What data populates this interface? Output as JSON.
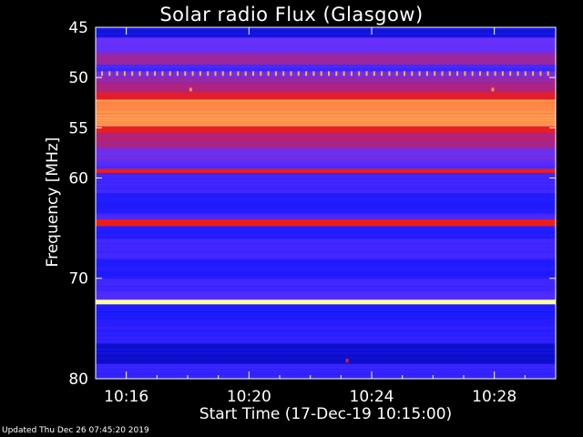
{
  "chart_data": {
    "type": "heatmap",
    "title": "Solar radio Flux (Glasgow)",
    "xlabel": "Start Time (17-Dec-19 10:15:00)",
    "ylabel": "Frequency [MHz]",
    "x_ticks": [
      "10:16",
      "10:20",
      "10:24",
      "10:28"
    ],
    "x_tick_minutes": [
      16,
      20,
      24,
      28
    ],
    "xlim_minutes": [
      15,
      30
    ],
    "y_ticks": [
      45,
      50,
      55,
      60,
      70,
      80
    ],
    "ylim": [
      45,
      80
    ],
    "colorscale": [
      "#00008c",
      "#1a1aff",
      "#6432ff",
      "#c81e50",
      "#ff1e00",
      "#ffff96"
    ],
    "bands": [
      {
        "freq_start": 45.0,
        "freq_end": 46.0,
        "intensity": 0.15
      },
      {
        "freq_start": 46.0,
        "freq_end": 47.5,
        "intensity": 0.4
      },
      {
        "freq_start": 47.5,
        "freq_end": 48.7,
        "intensity": 0.5
      },
      {
        "freq_start": 48.7,
        "freq_end": 49.4,
        "intensity": 0.3
      },
      {
        "freq_start": 49.4,
        "freq_end": 49.9,
        "intensity": 0.45
      },
      {
        "freq_start": 49.9,
        "freq_end": 50.6,
        "intensity": 0.5
      },
      {
        "freq_start": 50.6,
        "freq_end": 51.4,
        "intensity": 0.55
      },
      {
        "freq_start": 51.4,
        "freq_end": 52.2,
        "intensity": 0.7
      },
      {
        "freq_start": 52.2,
        "freq_end": 54.8,
        "intensity": 0.9
      },
      {
        "freq_start": 54.8,
        "freq_end": 55.5,
        "intensity": 0.72
      },
      {
        "freq_start": 55.5,
        "freq_end": 57.0,
        "intensity": 0.55
      },
      {
        "freq_start": 57.0,
        "freq_end": 58.2,
        "intensity": 0.42
      },
      {
        "freq_start": 58.2,
        "freq_end": 59.1,
        "intensity": 0.35
      },
      {
        "freq_start": 59.1,
        "freq_end": 59.5,
        "intensity": 0.74
      },
      {
        "freq_start": 59.5,
        "freq_end": 61.5,
        "intensity": 0.3
      },
      {
        "freq_start": 61.5,
        "freq_end": 63.5,
        "intensity": 0.22
      },
      {
        "freq_start": 63.5,
        "freq_end": 64.1,
        "intensity": 0.33
      },
      {
        "freq_start": 64.1,
        "freq_end": 64.8,
        "intensity": 0.74
      },
      {
        "freq_start": 64.8,
        "freq_end": 66.0,
        "intensity": 0.22
      },
      {
        "freq_start": 66.0,
        "freq_end": 68.0,
        "intensity": 0.3
      },
      {
        "freq_start": 68.0,
        "freq_end": 70.0,
        "intensity": 0.22
      },
      {
        "freq_start": 70.0,
        "freq_end": 71.3,
        "intensity": 0.3
      },
      {
        "freq_start": 71.3,
        "freq_end": 72.1,
        "intensity": 0.35
      },
      {
        "freq_start": 72.1,
        "freq_end": 72.6,
        "intensity": 1.0
      },
      {
        "freq_start": 72.6,
        "freq_end": 74.0,
        "intensity": 0.2
      },
      {
        "freq_start": 74.0,
        "freq_end": 76.5,
        "intensity": 0.25
      },
      {
        "freq_start": 76.5,
        "freq_end": 78.5,
        "intensity": 0.12
      },
      {
        "freq_start": 78.5,
        "freq_end": 80.0,
        "intensity": 0.28
      }
    ],
    "markers": [
      {
        "minute": 18.1,
        "freq": 51.2,
        "intensity": 0.9
      },
      {
        "minute": 27.95,
        "freq": 51.2,
        "intensity": 0.9
      },
      {
        "minute": 23.2,
        "freq": 78.2,
        "intensity": 0.7
      }
    ],
    "dotted_line_freq": 49.6
  },
  "footer": "Updated Thu Dec 26 07:45:20 2019"
}
